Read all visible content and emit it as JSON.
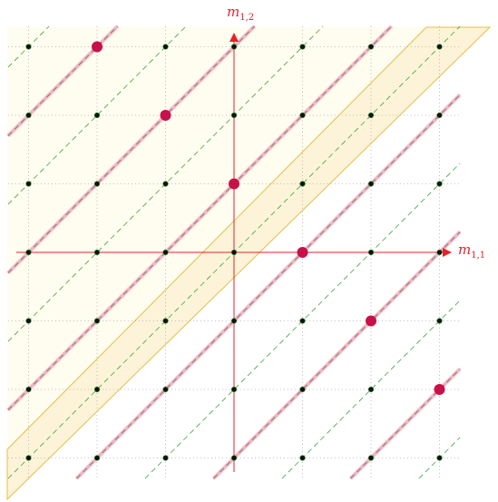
{
  "axes": {
    "x_label": {
      "base": "m",
      "sub": "1,1"
    },
    "y_label": {
      "base": "m",
      "sub": "1,2"
    }
  }
}
